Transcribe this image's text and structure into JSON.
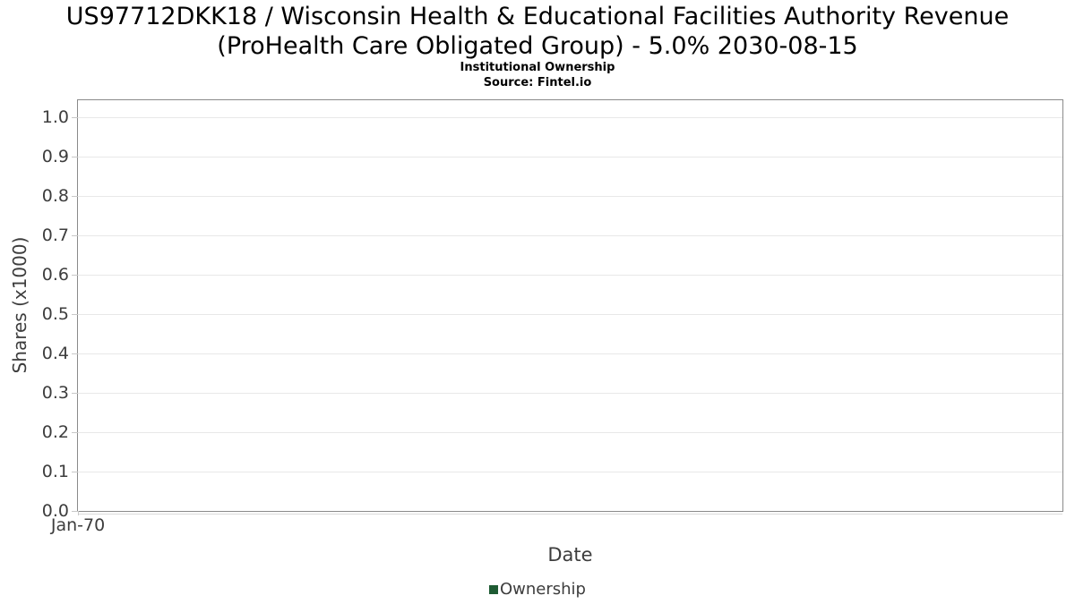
{
  "header": {
    "title_line1": "US97712DKK18 / Wisconsin Health & Educational Facilities Authority Revenue",
    "title_line2": "(ProHealth Care Obligated Group) - 5.0% 2030-08-15",
    "subtitle": "Institutional Ownership",
    "source": "Source: Fintel.io"
  },
  "colors": {
    "legend_green": "#1e5b33",
    "grid": "#e8e8e8",
    "axis_border": "#8a8a8a",
    "tick": "#c8c8c8",
    "label_text": "#3d3d3d",
    "title_text": "#000000"
  },
  "chart_data": {
    "type": "line",
    "title": "US97712DKK18 / Wisconsin Health & Educational Facilities Authority Revenue (ProHealth Care Obligated Group) - 5.0% 2030-08-15",
    "subtitle": "Institutional Ownership",
    "source": "Source: Fintel.io",
    "xlabel": "Date",
    "ylabel": "Shares (x1000)",
    "x_ticks": [
      "Jan-70"
    ],
    "y_ticks": [
      0.0,
      0.1,
      0.2,
      0.3,
      0.4,
      0.5,
      0.6,
      0.7,
      0.8,
      0.9,
      1.0
    ],
    "ylim": [
      0,
      1.05
    ],
    "grid": "horizontal",
    "legend_position": "bottom",
    "series": [
      {
        "name": "Ownership",
        "color": "#1e5b33",
        "x": [],
        "values": []
      }
    ]
  }
}
